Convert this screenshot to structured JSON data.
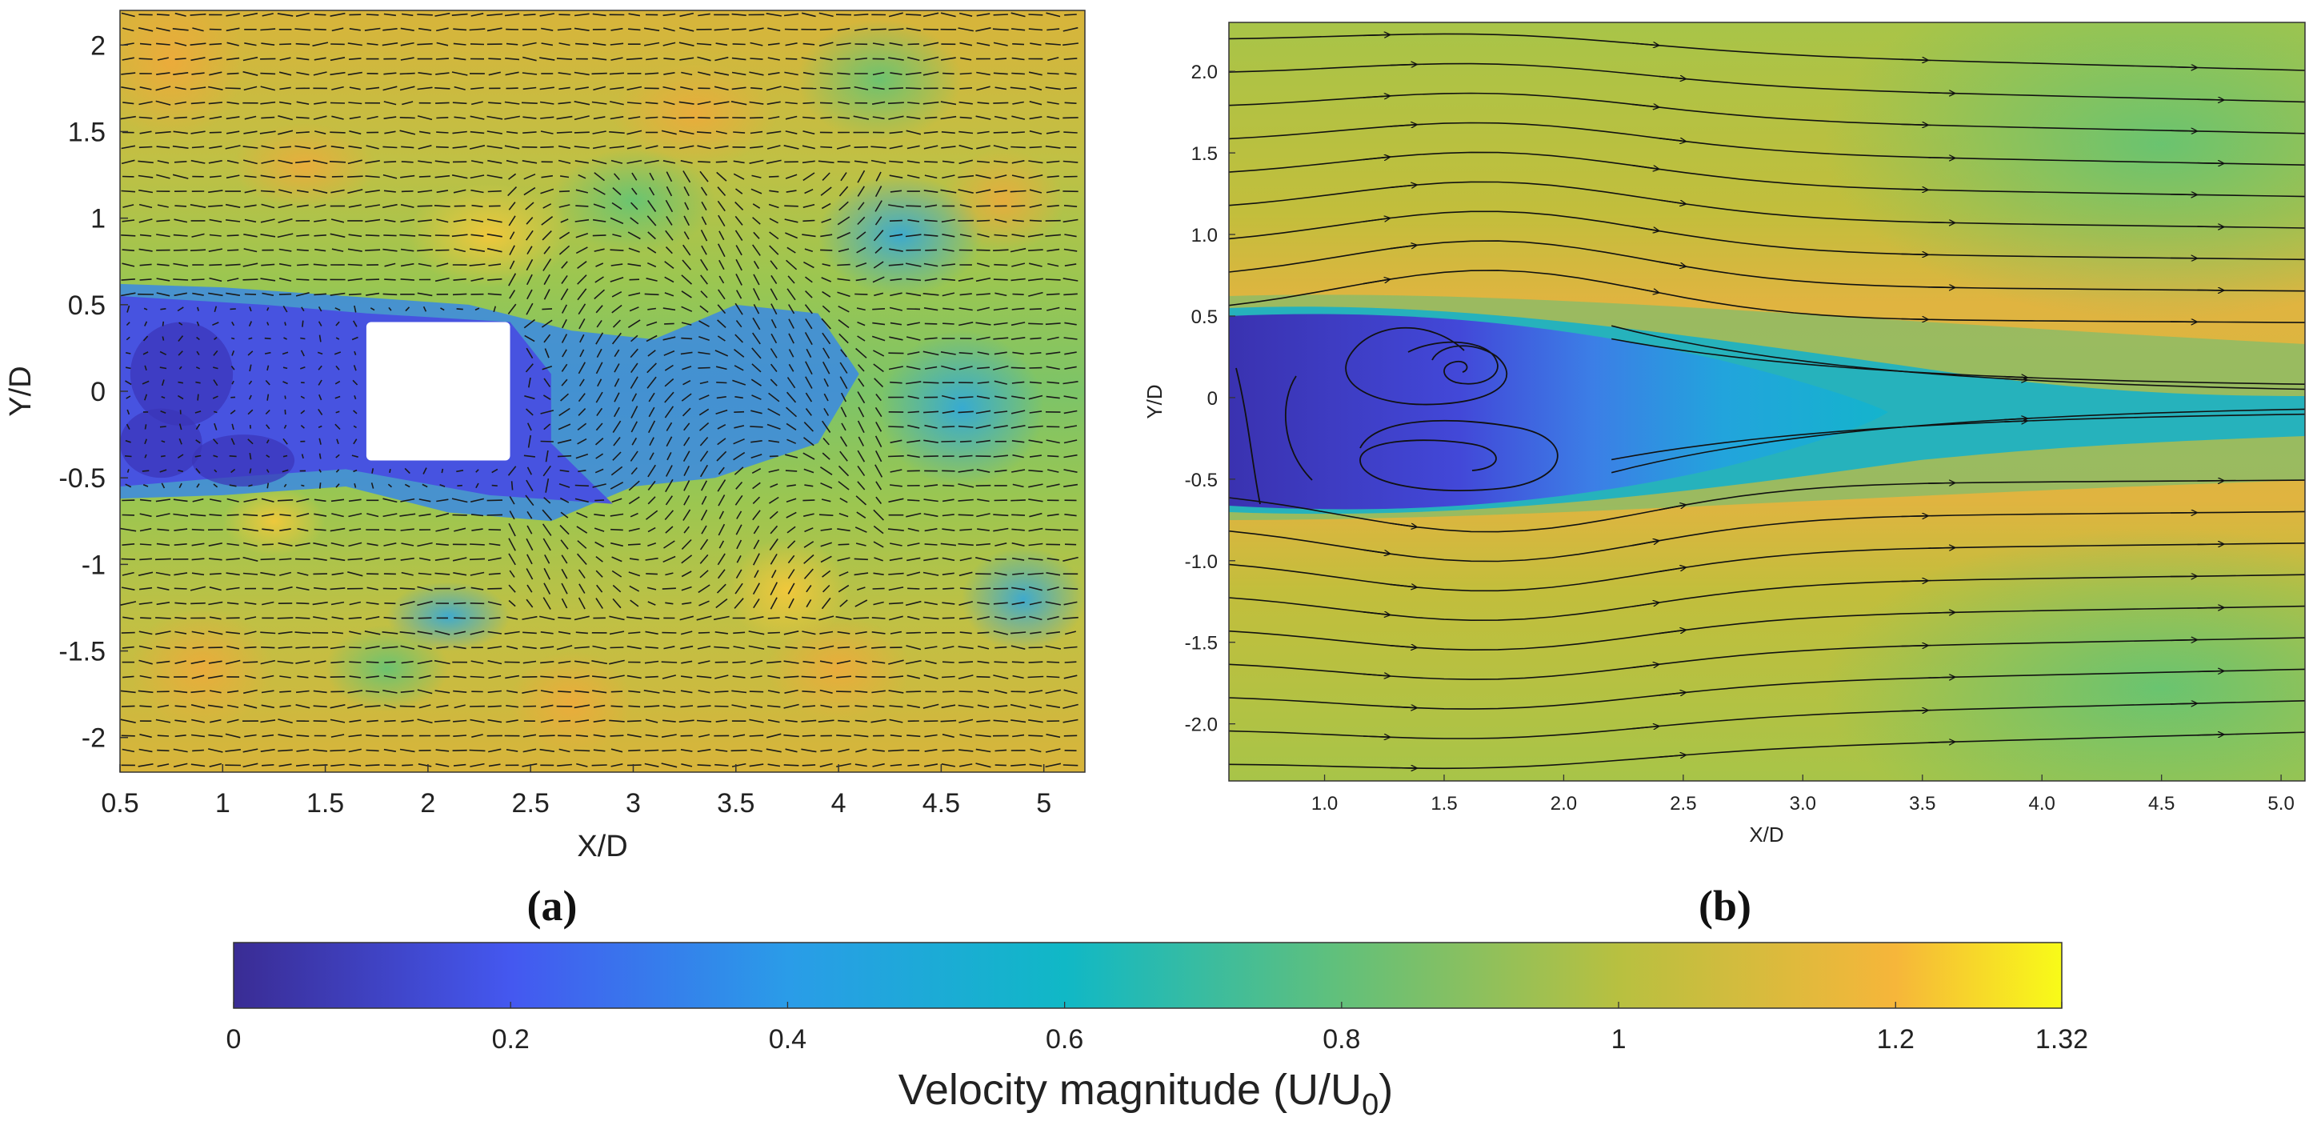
{
  "chart_data": [
    {
      "type": "heatmap",
      "panel_label": "(a)",
      "description_kind": "velocity magnitude contour with vector arrows",
      "xlabel": "X/D",
      "ylabel": "Y/D",
      "xlim": [
        0.5,
        5.2
      ],
      "ylim": [
        -2.2,
        2.2
      ],
      "xticks": [
        "0.5",
        "1",
        "1.5",
        "2",
        "2.5",
        "3",
        "3.5",
        "4",
        "4.5",
        "5"
      ],
      "xtick_values": [
        0.5,
        1,
        1.5,
        2,
        2.5,
        3,
        3.5,
        4,
        4.5,
        5
      ],
      "yticks": [
        "2",
        "1.5",
        "1",
        "0.5",
        "0",
        "-0.5",
        "-1",
        "-1.5",
        "-2"
      ],
      "ytick_values": [
        2,
        1.5,
        1,
        0.5,
        0,
        -0.5,
        -1,
        -1.5,
        -2
      ],
      "obstacle": {
        "x_range": [
          1.7,
          2.4
        ],
        "y_range": [
          -0.4,
          0.4
        ]
      },
      "wake_region": {
        "x_range": [
          0.5,
          3.8
        ],
        "y_range": [
          -0.6,
          0.6
        ],
        "value_min": 0.1
      }
    },
    {
      "type": "heatmap",
      "panel_label": "(b)",
      "description_kind": "velocity magnitude contour with streamlines",
      "xlabel": "X/D",
      "ylabel": "Y/D",
      "xlim": [
        0.6,
        5.1
      ],
      "ylim": [
        -2.35,
        2.3
      ],
      "xticks": [
        "1.0",
        "1.5",
        "2.0",
        "2.5",
        "3.0",
        "3.5",
        "4.0",
        "4.5",
        "5.0"
      ],
      "xtick_values": [
        1.0,
        1.5,
        2.0,
        2.5,
        3.0,
        3.5,
        4.0,
        4.5,
        5.0
      ],
      "yticks": [
        "2.0",
        "1.5",
        "1.0",
        "0.5",
        "0",
        "-0.5",
        "-1.0",
        "-1.5",
        "-2.0"
      ],
      "ytick_values": [
        2.0,
        1.5,
        1.0,
        0.5,
        0,
        -0.5,
        -1.0,
        -1.5,
        -2.0
      ],
      "recirculation_vortices": [
        {
          "x": 1.6,
          "y": 0.3,
          "rotation": "counterclockwise"
        },
        {
          "x": 1.7,
          "y": -0.35,
          "rotation": "clockwise"
        }
      ],
      "streamline_count": 22
    }
  ],
  "colorbar": {
    "title": "Velocity magnitude (U/U",
    "title_subscript": "0",
    "title_end": ")",
    "range": [
      0,
      1.32
    ],
    "tick_labels": [
      "0",
      "0.2",
      "0.4",
      "0.6",
      "0.8",
      "1",
      "1.2",
      "1.32"
    ],
    "tick_values": [
      0,
      0.2,
      0.4,
      0.6,
      0.8,
      1,
      1.2,
      1.32
    ],
    "colors": [
      "#3a2c94",
      "#4458f0",
      "#2a9ce8",
      "#10b8c6",
      "#62c07a",
      "#b8c040",
      "#f6b63a",
      "#f8fb18"
    ]
  }
}
